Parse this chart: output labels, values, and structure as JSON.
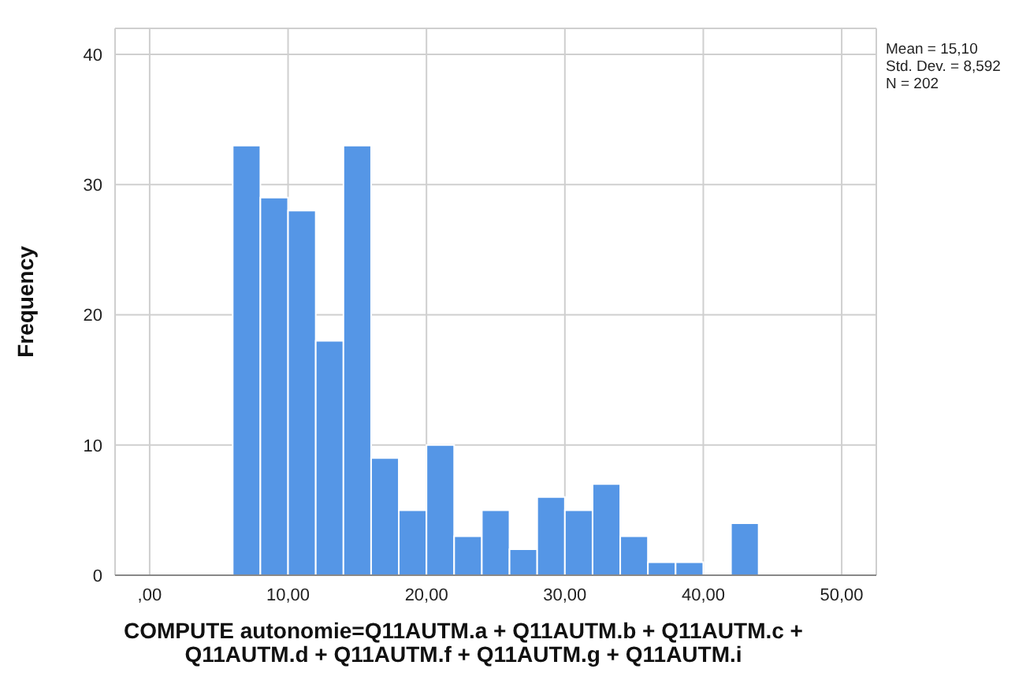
{
  "chart_data": {
    "type": "histogram",
    "xlabel": "COMPUTE autonomie=Q11AUTM.a + Q11AUTM.b + Q11AUTM.c + Q11AUTM.d + Q11AUTM.f + Q11AUTM.g + Q11AUTM.i",
    "ylabel": "Frequency",
    "bins": [
      6,
      8,
      10,
      12,
      14,
      16,
      18,
      20,
      22,
      24,
      26,
      28,
      30,
      32,
      34,
      36,
      38,
      40,
      42,
      44
    ],
    "values": [
      33,
      29,
      28,
      18,
      33,
      9,
      5,
      10,
      3,
      5,
      2,
      6,
      5,
      7,
      3,
      1,
      1,
      0,
      4
    ],
    "color": "#5596e6",
    "xlim": [
      -2.5,
      52.5
    ],
    "xticks": [
      {
        "value": 0,
        "label": ",00"
      },
      {
        "value": 10,
        "label": "10,00"
      },
      {
        "value": 20,
        "label": "20,00"
      },
      {
        "value": 30,
        "label": "30,00"
      },
      {
        "value": 40,
        "label": "40,00"
      },
      {
        "value": 50,
        "label": "50,00"
      }
    ],
    "ylim": [
      0,
      42
    ],
    "yticks": [
      0,
      10,
      20,
      30,
      40
    ],
    "grid": true,
    "annotations": [
      "Mean = 15,10",
      "Std. Dev. = 8,592",
      "N = 202"
    ]
  }
}
